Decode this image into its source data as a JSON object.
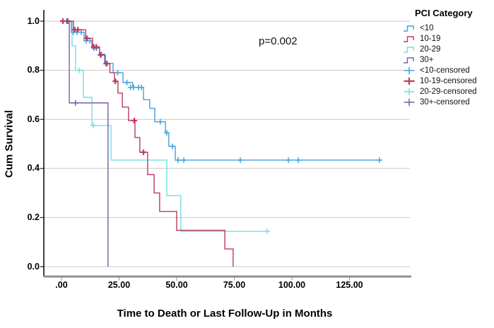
{
  "chart_data": {
    "type": "line",
    "subtype": "kaplan-meier-step",
    "annotation": "p=0.002",
    "xlabel": "Time to Death or Last Follow-Up in Months",
    "ylabel": "Cum Survival",
    "xlim": [
      0,
      151
    ],
    "ylim": [
      0.0,
      1.04
    ],
    "grid": "horizontal",
    "legend_position": "right",
    "x_ticks": [
      {
        "v": 0,
        "label": ".00"
      },
      {
        "v": 25,
        "label": "25.00"
      },
      {
        "v": 50,
        "label": "50.00"
      },
      {
        "v": 75,
        "label": "75.00"
      },
      {
        "v": 100,
        "label": "100.00"
      },
      {
        "v": 125,
        "label": "125.00"
      }
    ],
    "y_ticks": [
      {
        "v": 0.0,
        "label": "0.0"
      },
      {
        "v": 0.2,
        "label": "0.2"
      },
      {
        "v": 0.4,
        "label": "0.4"
      },
      {
        "v": 0.6,
        "label": "0.6"
      },
      {
        "v": 0.8,
        "label": "0.8"
      },
      {
        "v": 1.0,
        "label": "1.0"
      }
    ],
    "legend": {
      "title": "PCI Category",
      "items": [
        {
          "label": "<10",
          "glyph": "step",
          "color": "#45A1DB",
          "weight": 1.4
        },
        {
          "label": "10-19",
          "glyph": "step",
          "color": "#BE3A5F",
          "weight": 1.4
        },
        {
          "label": "20-29",
          "glyph": "step",
          "color": "#6FE1E4",
          "weight": 1.4
        },
        {
          "label": "30+",
          "glyph": "step",
          "color": "#7A5BA5",
          "weight": 1.4
        },
        {
          "label": "<10-censored",
          "glyph": "plus",
          "color": "#45A1DB",
          "weight": 1.5
        },
        {
          "label": "10-19-censored",
          "glyph": "plus",
          "color": "#BE3A5F",
          "weight": 2.2
        },
        {
          "label": "20-29-censored",
          "glyph": "plus",
          "color": "#6FE1E4",
          "weight": 1.5
        },
        {
          "label": "30+-censored",
          "glyph": "plus",
          "color": "#7A5BA5",
          "weight": 1.5
        }
      ]
    },
    "series": [
      {
        "name": "<10",
        "color": "#45A1DB",
        "censor_weight": 1.5,
        "end_time": 139,
        "events": [
          [
            4.3,
            0.955
          ],
          [
            9.8,
            0.92
          ],
          [
            13.2,
            0.89
          ],
          [
            16.5,
            0.865
          ],
          [
            18.7,
            0.828
          ],
          [
            22.4,
            0.79
          ],
          [
            26.7,
            0.75
          ],
          [
            30.9,
            0.73
          ],
          [
            35.6,
            0.68
          ],
          [
            38.3,
            0.645
          ],
          [
            40.5,
            0.59
          ],
          [
            45.1,
            0.545
          ],
          [
            46.6,
            0.49
          ],
          [
            49.4,
            0.434
          ]
        ],
        "censors": [
          [
            2.2,
            1.0
          ],
          [
            5.2,
            0.955
          ],
          [
            6.7,
            0.955
          ],
          [
            8.6,
            0.955
          ],
          [
            10.7,
            0.92
          ],
          [
            12.3,
            0.92
          ],
          [
            14.1,
            0.89
          ],
          [
            15.2,
            0.89
          ],
          [
            17.3,
            0.865
          ],
          [
            19.9,
            0.828
          ],
          [
            24.4,
            0.79
          ],
          [
            28.4,
            0.75
          ],
          [
            30.0,
            0.73
          ],
          [
            31.3,
            0.73
          ],
          [
            33.4,
            0.73
          ],
          [
            34.7,
            0.73
          ],
          [
            42.9,
            0.59
          ],
          [
            45.7,
            0.545
          ],
          [
            48.2,
            0.49
          ],
          [
            50.6,
            0.434
          ],
          [
            53.1,
            0.434
          ],
          [
            77.6,
            0.434
          ],
          [
            98.5,
            0.434
          ],
          [
            102.8,
            0.434
          ],
          [
            138,
            0.434
          ]
        ]
      },
      {
        "name": "10-19",
        "color": "#BE3A5F",
        "censor_weight": 2.2,
        "end_time": 74.5,
        "events": [
          [
            5.2,
            0.965
          ],
          [
            10.5,
            0.93
          ],
          [
            13.5,
            0.895
          ],
          [
            16.5,
            0.862
          ],
          [
            19,
            0.827
          ],
          [
            21,
            0.79
          ],
          [
            23,
            0.755
          ],
          [
            24.5,
            0.707
          ],
          [
            26.4,
            0.65
          ],
          [
            29.1,
            0.595
          ],
          [
            31.9,
            0.526
          ],
          [
            34,
            0.466
          ],
          [
            37.4,
            0.375
          ],
          [
            40.2,
            0.3
          ],
          [
            42.6,
            0.225
          ],
          [
            50,
            0.148
          ],
          [
            70.9,
            0.072
          ],
          [
            74.5,
            0.0
          ]
        ],
        "censors": [
          [
            0.6,
            1.0
          ],
          [
            2.7,
            1.0
          ],
          [
            5.8,
            0.965
          ],
          [
            7.1,
            0.965
          ],
          [
            11.1,
            0.93
          ],
          [
            14,
            0.895
          ],
          [
            15.1,
            0.895
          ],
          [
            17,
            0.862
          ],
          [
            19.4,
            0.827
          ],
          [
            23.4,
            0.755
          ],
          [
            31.6,
            0.595
          ],
          [
            35.6,
            0.466
          ]
        ]
      },
      {
        "name": "20-29",
        "color": "#6FE1E4",
        "censor_weight": 1.5,
        "end_time": 89.3,
        "events": [
          [
            4.6,
            0.9
          ],
          [
            6.1,
            0.8
          ],
          [
            9.5,
            0.69
          ],
          [
            13.2,
            0.575
          ],
          [
            21.5,
            0.434
          ],
          [
            45.7,
            0.289
          ],
          [
            51.8,
            0.144
          ]
        ],
        "censors": [
          [
            7.7,
            0.8
          ],
          [
            13.8,
            0.575
          ],
          [
            89.3,
            0.144
          ]
        ]
      },
      {
        "name": "30+",
        "color": "#7A5BA5",
        "censor_weight": 1.5,
        "end_time": 20.2,
        "events": [
          [
            3.4,
            0.667
          ],
          [
            20.2,
            0.0
          ]
        ],
        "censors": [
          [
            2.6,
            1.0
          ],
          [
            6.1,
            0.667
          ]
        ]
      }
    ]
  }
}
